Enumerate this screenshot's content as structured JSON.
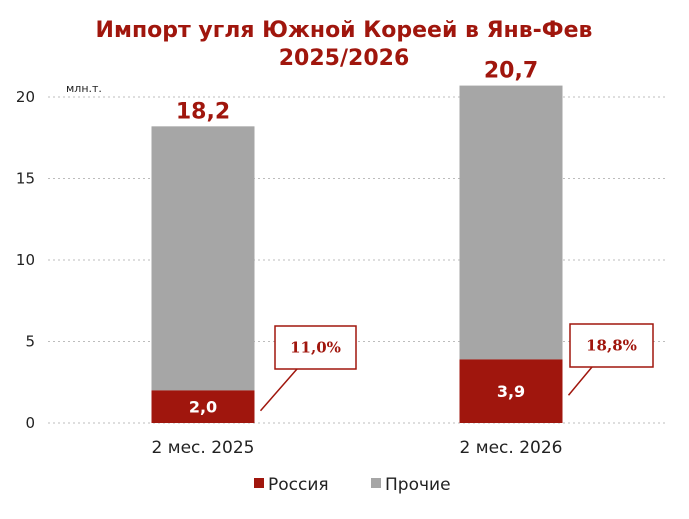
{
  "chart_data": {
    "type": "bar",
    "stacked": true,
    "title_lines": [
      "Импорт угля Южной Кореей в Янв-Фев",
      "2025/2026"
    ],
    "unit_label": "млн.т.",
    "categories": [
      "2 мес. 2025",
      "2 мес. 2026"
    ],
    "series": [
      {
        "name": "Россия",
        "values": [
          2.0,
          3.9
        ],
        "labels": [
          "2,0",
          "3,9"
        ]
      },
      {
        "name": "Прочие",
        "values": [
          16.2,
          16.8
        ]
      }
    ],
    "totals": [
      18.2,
      20.7
    ],
    "total_labels": [
      "18,2",
      "20,7"
    ],
    "share_labels": [
      "11,0%",
      "18,8%"
    ],
    "y_ticks": [
      "0",
      "5",
      "10",
      "15",
      "20"
    ],
    "ylim": [
      0,
      20
    ],
    "grid": true,
    "legend_position": "bottom",
    "colors": {
      "russia": "#a0160d",
      "others": "#a6a6a6",
      "title": "#a0160d"
    }
  }
}
